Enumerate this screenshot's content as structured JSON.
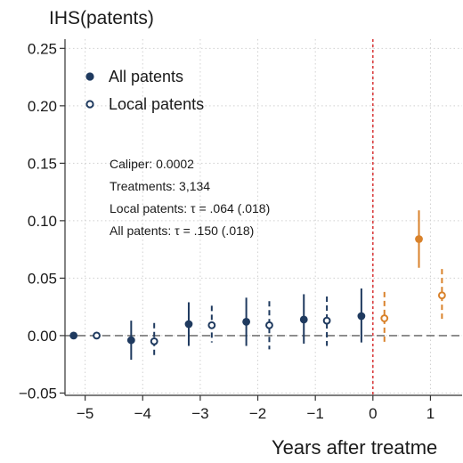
{
  "chart_data": {
    "type": "scatter",
    "title": "IHS(patents)",
    "xlabel": "Years after treatme",
    "ylabel": "",
    "xlim": [
      -5.35,
      1.55
    ],
    "ylim": [
      -0.052,
      0.258
    ],
    "x_ticks": [
      -5,
      -4,
      -3,
      -2,
      -1,
      0,
      1
    ],
    "x_tick_labels": [
      "−5",
      "−4",
      "−3",
      "−2",
      "−1",
      "0",
      "1"
    ],
    "y_ticks": [
      -0.05,
      0,
      0.05,
      0.1,
      0.15,
      0.2,
      0.25
    ],
    "y_tick_labels": [
      "−0.05",
      "0.00",
      "0.05",
      "0.10",
      "0.15",
      "0.20",
      "0.25"
    ],
    "grid": true,
    "legend_position": "top-left",
    "treatment_line_x": 0,
    "zero_line_y": 0,
    "colors": {
      "pre": "#1f3a5f",
      "post": "#d9822b",
      "treatment_line": "#d62728",
      "zero_line": "#777777",
      "grid": "#d0d0d0"
    },
    "series": [
      {
        "name": "All patents",
        "marker": "filled",
        "points": [
          {
            "x": -5.2,
            "y": 0.0,
            "lo": 0.0,
            "hi": 0.0
          },
          {
            "x": -4.2,
            "y": -0.004,
            "lo": -0.021,
            "hi": 0.013
          },
          {
            "x": -3.2,
            "y": 0.01,
            "lo": -0.009,
            "hi": 0.029
          },
          {
            "x": -2.2,
            "y": 0.012,
            "lo": -0.009,
            "hi": 0.033
          },
          {
            "x": -1.2,
            "y": 0.014,
            "lo": -0.007,
            "hi": 0.036
          },
          {
            "x": -0.2,
            "y": 0.017,
            "lo": -0.006,
            "hi": 0.041
          },
          {
            "x": 0.8,
            "y": 0.084,
            "lo": 0.059,
            "hi": 0.109
          }
        ]
      },
      {
        "name": "Local patents",
        "marker": "hollow",
        "points": [
          {
            "x": -4.8,
            "y": 0.0,
            "lo": 0.0,
            "hi": 0.0
          },
          {
            "x": -3.8,
            "y": -0.005,
            "lo": -0.02,
            "hi": 0.011
          },
          {
            "x": -2.8,
            "y": 0.009,
            "lo": -0.006,
            "hi": 0.026
          },
          {
            "x": -1.8,
            "y": 0.009,
            "lo": -0.012,
            "hi": 0.03
          },
          {
            "x": -0.8,
            "y": 0.013,
            "lo": -0.009,
            "hi": 0.034
          },
          {
            "x": 0.2,
            "y": 0.015,
            "lo": -0.006,
            "hi": 0.038
          },
          {
            "x": 1.2,
            "y": 0.035,
            "lo": 0.012,
            "hi": 0.058
          }
        ]
      }
    ],
    "annotations": [
      "Caliper: 0.0002",
      "Treatments: 3,134",
      "Local patents: τ = .064 (.018)",
      "All patents: τ = .150 (.018)"
    ]
  }
}
